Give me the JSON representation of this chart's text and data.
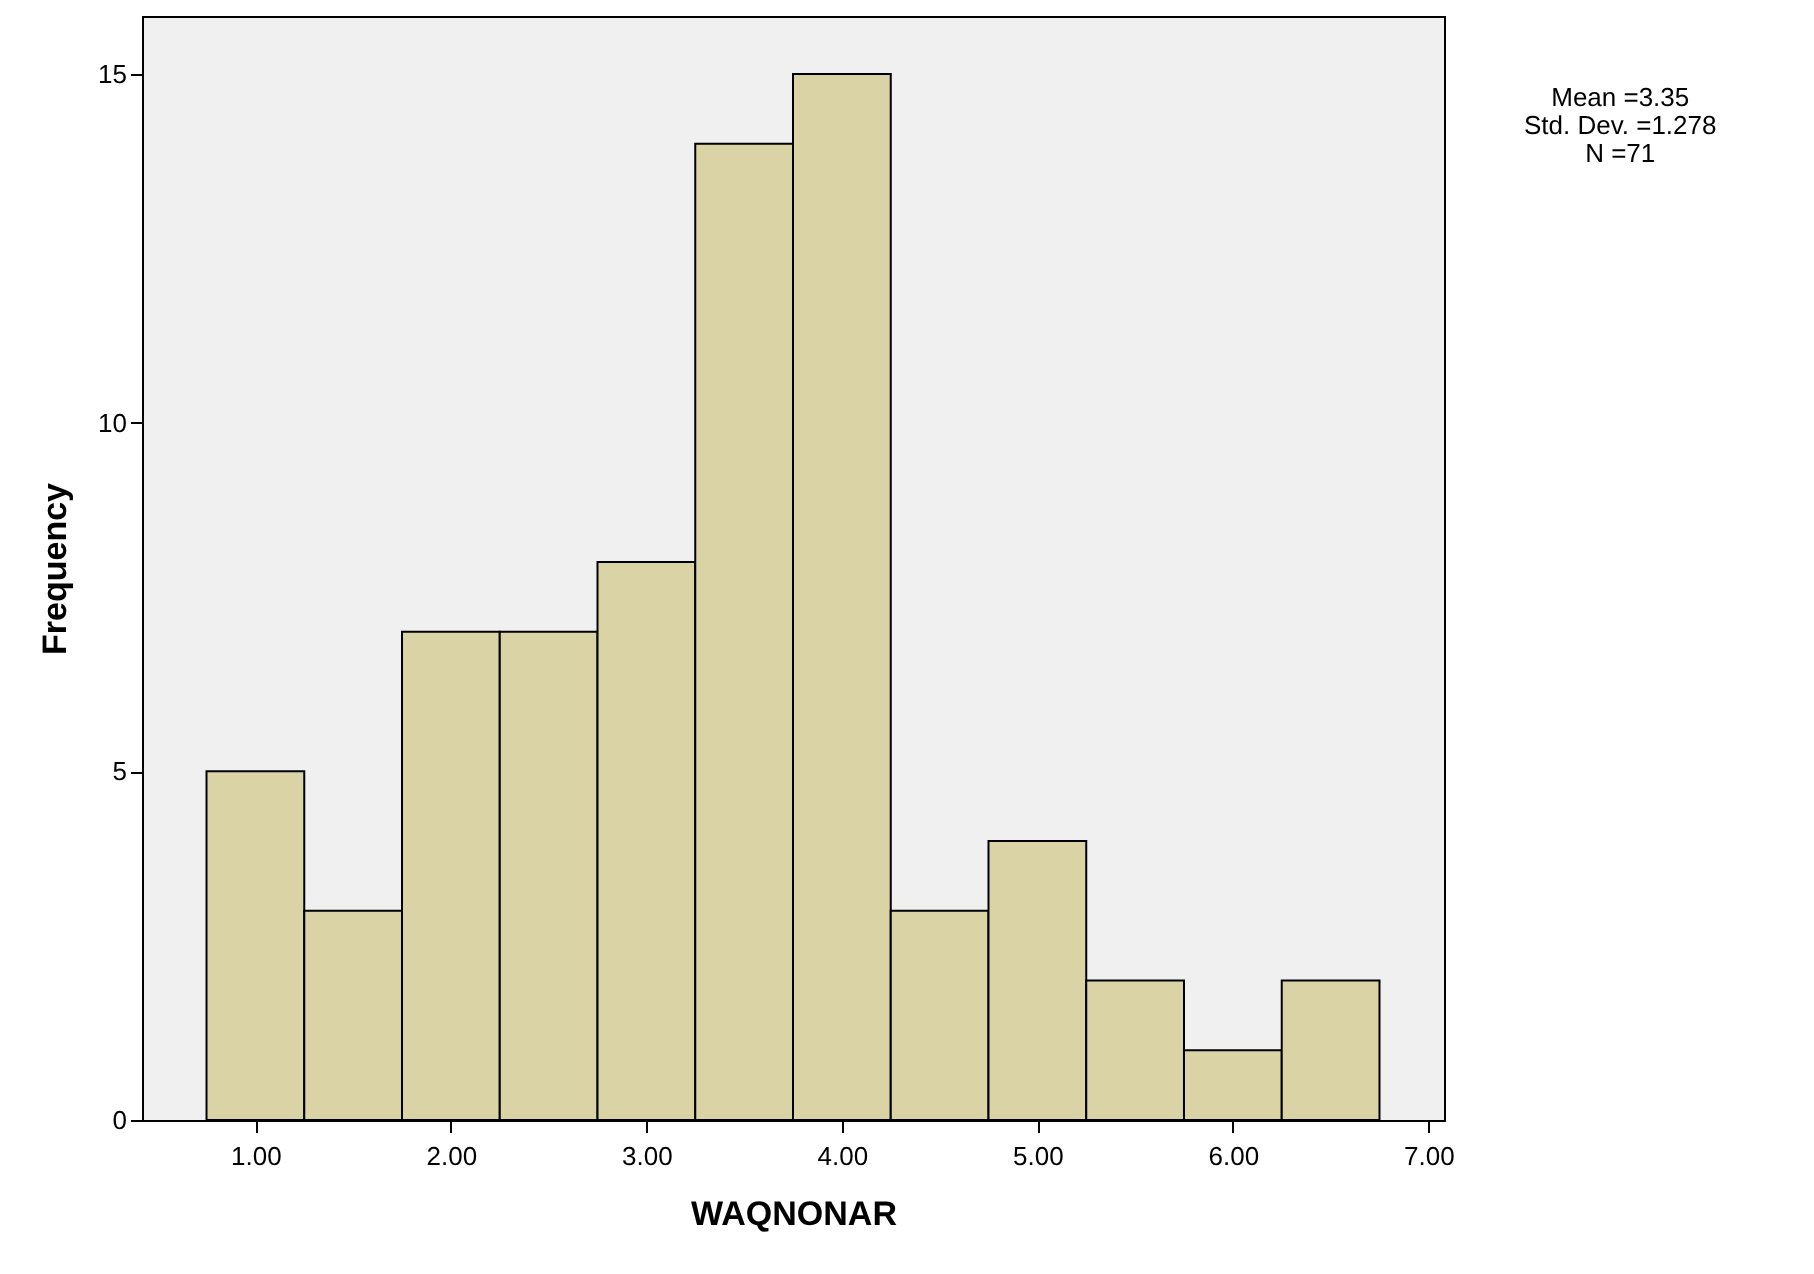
{
  "chart_data": {
    "type": "histogram",
    "xlabel": "WAQNONAR",
    "ylabel": "Frequency",
    "bins": [
      0.75,
      1.25,
      1.75,
      2.25,
      2.75,
      3.25,
      3.75,
      4.25,
      4.75,
      5.25,
      5.75,
      6.25,
      6.75
    ],
    "values": [
      5,
      3,
      7,
      7,
      8,
      14,
      15,
      3,
      4,
      2,
      1,
      2
    ],
    "color": "#d9d3a5",
    "xlim": [
      0.42,
      7.08
    ],
    "xticks": [
      {
        "value": 1,
        "label": "1.00"
      },
      {
        "value": 2,
        "label": "2.00"
      },
      {
        "value": 3,
        "label": "3.00"
      },
      {
        "value": 4,
        "label": "4.00"
      },
      {
        "value": 5,
        "label": "5.00"
      },
      {
        "value": 6,
        "label": "6.00"
      },
      {
        "value": 7,
        "label": "7.00"
      }
    ],
    "ylim": [
      0,
      15.83
    ],
    "yticks": [
      0,
      5,
      10,
      15
    ],
    "annotations": [
      "Mean =3.35",
      "Std. Dev. =1.278",
      "N =71"
    ],
    "grid": false
  }
}
